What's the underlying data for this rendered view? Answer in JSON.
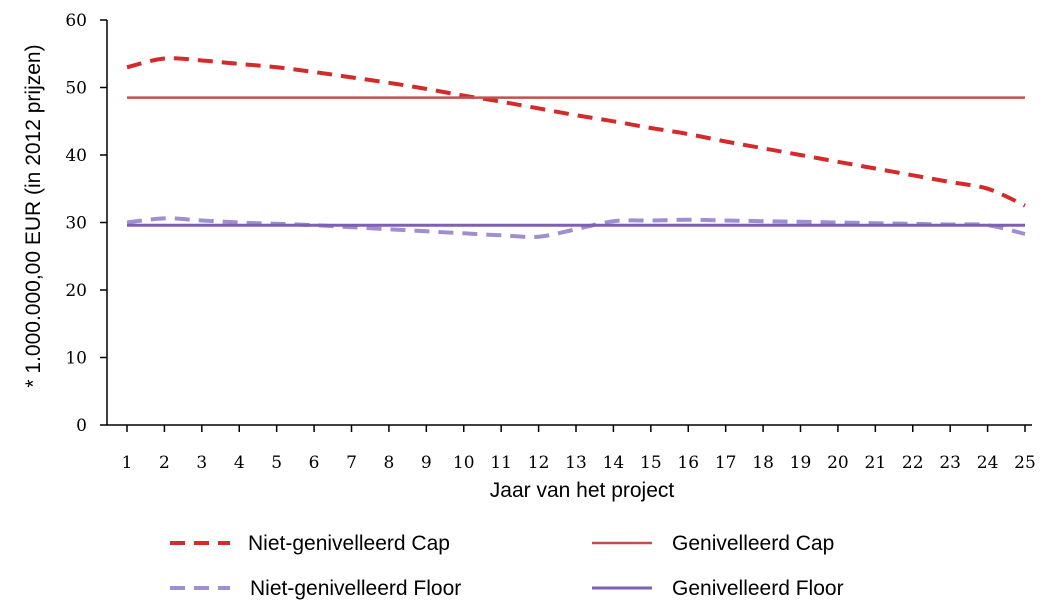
{
  "chart_data": {
    "type": "line",
    "title": "",
    "xlabel": "Jaar van het project",
    "ylabel": "* 1.000.000,00 EUR (in 2012 prijzen)",
    "ylim": [
      0,
      60
    ],
    "yticks": [
      "0",
      "10",
      "20",
      "30",
      "40",
      "50",
      "60"
    ],
    "categories": [
      "1",
      "2",
      "3",
      "4",
      "5",
      "6",
      "7",
      "8",
      "9",
      "10",
      "11",
      "12",
      "13",
      "14",
      "15",
      "16",
      "17",
      "18",
      "19",
      "20",
      "21",
      "22",
      "23",
      "24",
      "25"
    ],
    "grid": false,
    "legend_position": "bottom",
    "series": [
      {
        "name": "Niet-genivelleerd Cap",
        "style": "dashed",
        "color": "#d42a2a",
        "values": [
          53.0,
          54.3,
          54.0,
          53.5,
          53.0,
          52.3,
          51.5,
          50.7,
          49.8,
          48.8,
          47.9,
          46.9,
          45.9,
          45.0,
          44.0,
          43.1,
          42.0,
          41.0,
          40.0,
          39.0,
          38.0,
          37.0,
          36.0,
          35.0,
          32.5
        ]
      },
      {
        "name": "Genivelleerd Cap",
        "style": "solid",
        "color": "#c0504d",
        "values": [
          48.5,
          48.5,
          48.5,
          48.5,
          48.5,
          48.5,
          48.5,
          48.5,
          48.5,
          48.5,
          48.5,
          48.5,
          48.5,
          48.5,
          48.5,
          48.5,
          48.5,
          48.5,
          48.5,
          48.5,
          48.5,
          48.5,
          48.5,
          48.5,
          48.5
        ]
      },
      {
        "name": "Niet-genivelleerd Floor",
        "style": "dashed",
        "color": "#9f8fd0",
        "values": [
          30.0,
          30.6,
          30.3,
          30.0,
          29.8,
          29.6,
          29.3,
          29.0,
          28.7,
          28.4,
          28.1,
          27.9,
          29.0,
          30.2,
          30.3,
          30.4,
          30.3,
          30.2,
          30.1,
          30.0,
          29.9,
          29.8,
          29.7,
          29.6,
          28.3
        ]
      },
      {
        "name": "Genivelleerd Floor",
        "style": "solid",
        "color": "#7f5fb5",
        "values": [
          29.6,
          29.6,
          29.6,
          29.6,
          29.6,
          29.6,
          29.6,
          29.6,
          29.6,
          29.6,
          29.6,
          29.6,
          29.6,
          29.6,
          29.6,
          29.6,
          29.6,
          29.6,
          29.6,
          29.6,
          29.6,
          29.6,
          29.6,
          29.6,
          29.6
        ]
      }
    ]
  }
}
